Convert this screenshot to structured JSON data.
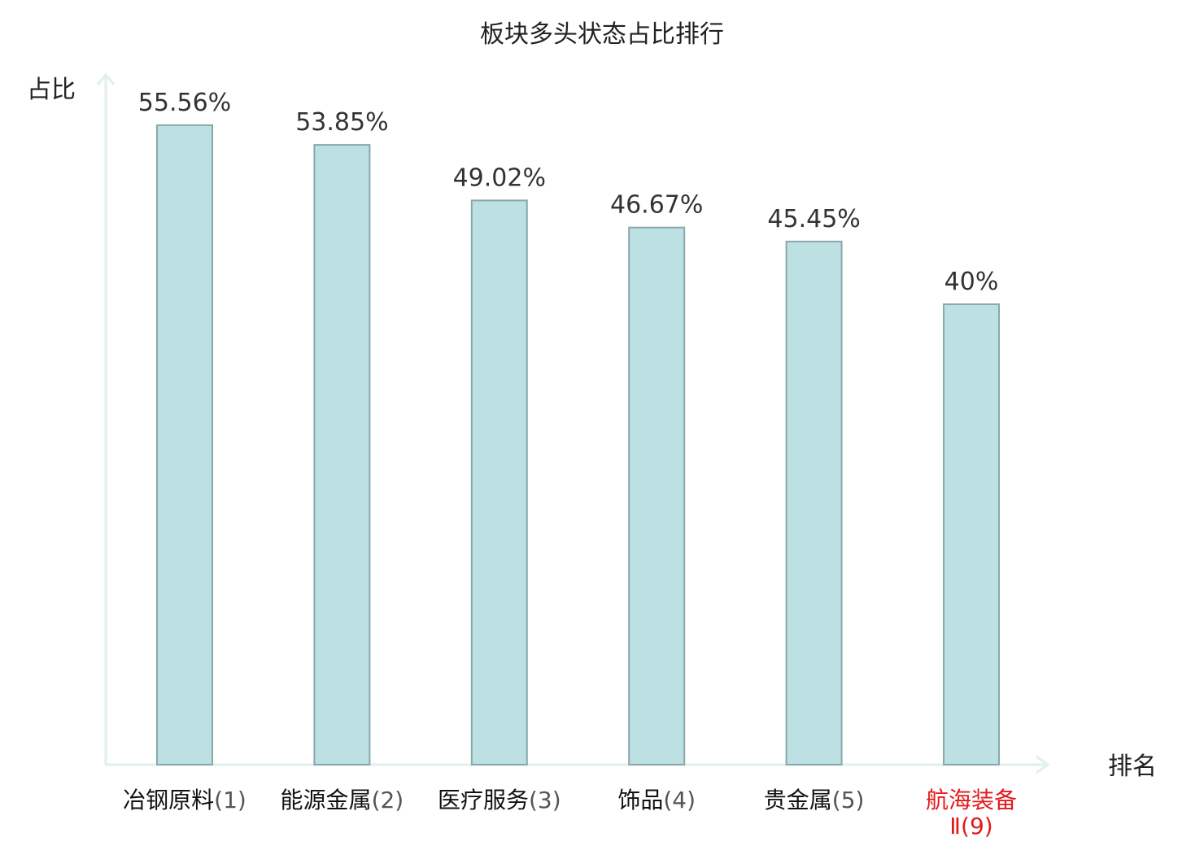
{
  "title": "板块多头状态占比排行",
  "colors": {
    "bar_fill": "#bde0e3",
    "bar_stroke": "#8aa8ab",
    "axis": "#dff0ee",
    "highlight_text": "#e31a1c"
  },
  "chart_data": {
    "type": "bar",
    "title": "板块多头状态占比排行",
    "xlabel": "排名",
    "ylabel": "占比",
    "ylim": [
      0,
      60
    ],
    "grid": false,
    "categories": [
      {
        "name": "冶钢原料",
        "rank": "(1)",
        "highlight": false
      },
      {
        "name": "能源金属",
        "rank": "(2)",
        "highlight": false
      },
      {
        "name": "医疗服务",
        "rank": "(3)",
        "highlight": false
      },
      {
        "name": "饰品",
        "rank": "(4)",
        "highlight": false
      },
      {
        "name": "贵金属",
        "rank": "(5)",
        "highlight": false
      },
      {
        "name": "航海装备",
        "rank": "Ⅱ(9)",
        "highlight": true
      }
    ],
    "values": [
      55.56,
      53.85,
      49.02,
      46.67,
      45.45,
      40
    ],
    "value_labels": [
      "55.56%",
      "53.85%",
      "49.02%",
      "46.67%",
      "45.45%",
      "40%"
    ]
  }
}
